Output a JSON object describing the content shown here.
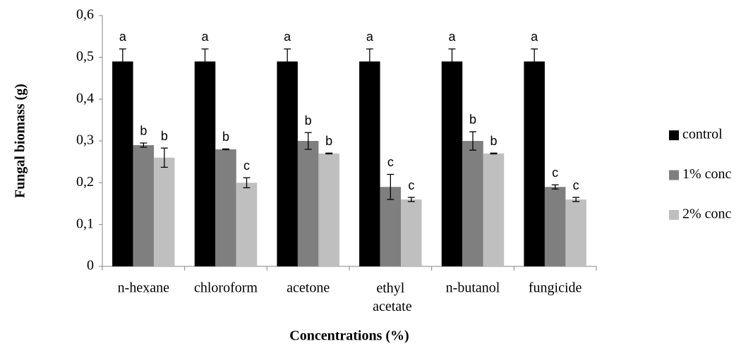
{
  "chart_data": {
    "type": "bar",
    "xlabel": "Concentrations (%)",
    "ylabel": "Fungal biomass (g)",
    "categories": [
      "n-hexane",
      "chloroform",
      "acetone",
      "ethyl acetate",
      "n-butanol",
      "fungicide"
    ],
    "series": [
      {
        "name": "control",
        "color": "#000000",
        "values": [
          0.49,
          0.49,
          0.49,
          0.49,
          0.49,
          0.49
        ],
        "errors": [
          0.03,
          0.03,
          0.03,
          0.03,
          0.03,
          0.03
        ],
        "letters": [
          "a",
          "a",
          "a",
          "a",
          "a",
          "a"
        ]
      },
      {
        "name": "1% conc",
        "color": "#7f7f7f",
        "values": [
          0.29,
          0.28,
          0.3,
          0.19,
          0.3,
          0.19
        ],
        "errors": [
          0.005,
          0.001,
          0.02,
          0.03,
          0.022,
          0.005
        ],
        "letters": [
          "b",
          "b",
          "b",
          "c",
          "b",
          "c"
        ]
      },
      {
        "name": "2% conc",
        "color": "#bfbfbf",
        "values": [
          0.26,
          0.2,
          0.27,
          0.16,
          0.27,
          0.16
        ],
        "errors": [
          0.023,
          0.012,
          0.001,
          0.005,
          0.001,
          0.005
        ],
        "letters": [
          "b",
          "c",
          "b",
          "c",
          "b",
          "c"
        ]
      }
    ],
    "ylim": [
      0,
      0.6
    ],
    "yticks": [
      0,
      {
        "value": 0.1,
        "label": "0,1"
      },
      {
        "value": 0.2,
        "label": "0,2"
      },
      {
        "value": 0.3,
        "label": "0,3"
      },
      {
        "value": 0.4,
        "label": "0,4"
      },
      {
        "value": 0.5,
        "label": "0,5"
      },
      {
        "value": 0.6,
        "label": "0,6"
      }
    ],
    "legend": "right"
  }
}
